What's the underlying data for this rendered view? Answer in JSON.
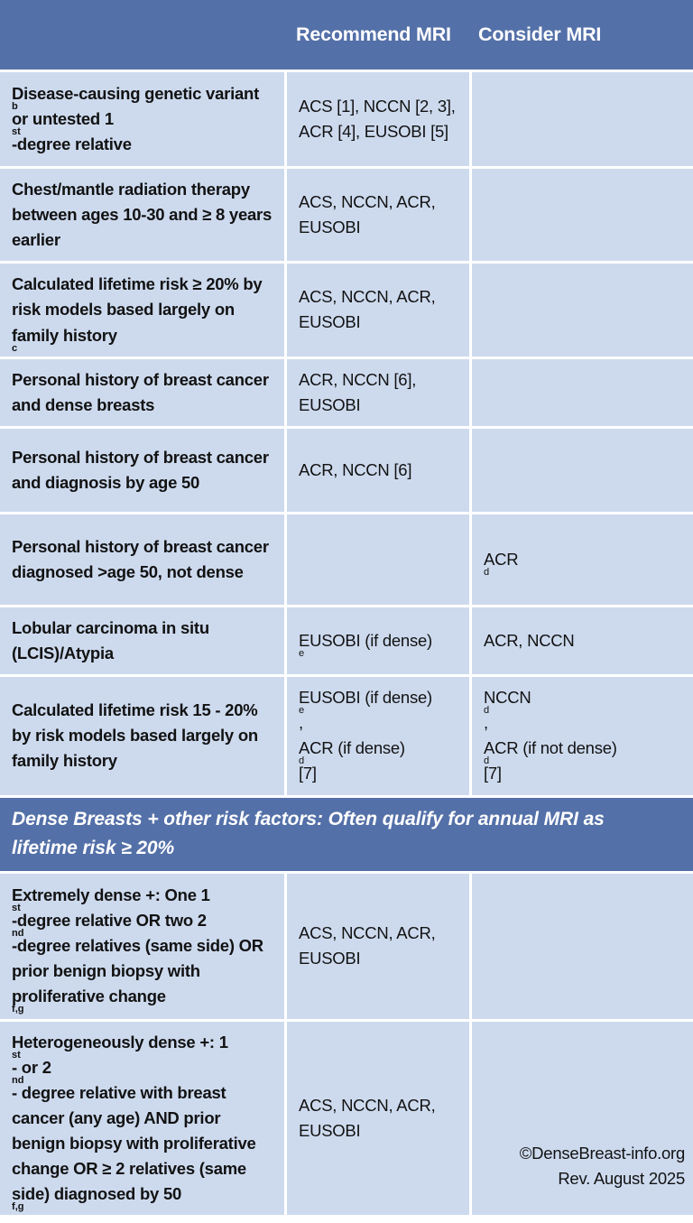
{
  "colors": {
    "header_bg": "#5470a8",
    "banner_bg": "#5470a8",
    "cell_bg": "#cddaee",
    "gap": "#ffffff",
    "header_text": "#ffffff",
    "body_text": "#121212"
  },
  "header": {
    "risk_col": "",
    "recommend_col": "Recommend MRI",
    "consider_col": "Consider MRI"
  },
  "rows": [
    {
      "risk": "Disease-causing genetic variant^{b} or untested 1^{st}-degree relative",
      "recommend": "ACS [1], NCCN [2, 3], ACR [4], EUSOBI [5]",
      "consider": ""
    },
    {
      "risk": "Chest/mantle radiation therapy between ages 10-30 and ≥ 8 years earlier",
      "recommend": "ACS, NCCN, ACR, EUSOBI",
      "consider": ""
    },
    {
      "risk": "Calculated lifetime risk ≥ 20% by risk models based largely on family history^{c}",
      "recommend": "ACS, NCCN, ACR, EUSOBI",
      "consider": ""
    },
    {
      "risk": "Personal history of breast cancer and dense breasts",
      "recommend": "ACR, NCCN [6], EUSOBI",
      "consider": ""
    },
    {
      "risk": "Personal history of breast cancer and diagnosis by age 50",
      "recommend": "ACR, NCCN [6]",
      "consider": ""
    },
    {
      "risk": "Personal history of breast cancer diagnosed >age 50, not dense",
      "recommend": "",
      "consider": "ACR^{d}"
    },
    {
      "risk": "Lobular carcinoma in situ (LCIS)/Atypia",
      "recommend": "EUSOBI (if dense)^{e}",
      "consider": "ACR, NCCN"
    },
    {
      "risk": "Calculated lifetime risk 15 - 20% by risk models based largely on family history",
      "recommend": "EUSOBI (if dense)^{e},\nACR (if dense)^{d} [7]",
      "consider": "NCCN^{d},\nACR (if not dense)^{d} [7]"
    },
    {
      "risk": "Extremely dense +: One 1^{st}-degree relative OR two 2^{nd}-degree relatives (same side) OR prior benign biopsy with proliferative change^{f,g}",
      "recommend": "ACS, NCCN, ACR, EUSOBI",
      "consider": ""
    },
    {
      "risk": "Heterogeneously dense +: 1^{st}- or 2^{nd}- degree relative with breast cancer (any age) AND prior benign biopsy with proliferative change OR ≥ 2 relatives (same side) diagnosed by 50^{f,g}",
      "recommend": "ACS, NCCN, ACR, EUSOBI"
    }
  ],
  "banner": {
    "text": "Dense Breasts + other risk factors: Often qualify for annual MRI as lifetime risk ≥ 20%"
  },
  "footer": {
    "line1": "©DenseBreast-info.org",
    "line2": "Rev. August 2025"
  }
}
